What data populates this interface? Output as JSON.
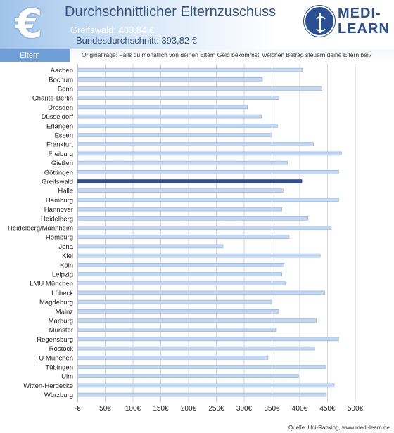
{
  "header": {
    "title": "Durchschnittlicher Elternzuschuss",
    "highlight_line": "Greifswald: 403,84 €",
    "average_line": "Bundesdurchschnitt: 393,82 €",
    "icon": "euro-icon"
  },
  "logo": {
    "line1": "MEDI-",
    "line2": "LEARN",
    "icon": "caduceus-icon",
    "color": "#2a4f93"
  },
  "section": {
    "label": "Eltern"
  },
  "question": "Originalfrage: Falls du monatlich von deinen Eltern Geld bekommst, welchen Betrag steuern deine Eltern bei?",
  "footer": {
    "source": "Quelle: Uni-Ranking, www.medi-learn.de"
  },
  "chart_data": {
    "type": "bar",
    "orientation": "horizontal",
    "categories": [
      "Aachen",
      "Bochum",
      "Bonn",
      "Charité-Berlin",
      "Dresden",
      "Düsseldorf",
      "Erlangen",
      "Essen",
      "Frankfurt",
      "Freiburg",
      "Gießen",
      "Göttingen",
      "Greifswald",
      "Halle",
      "Hamburg",
      "Hannover",
      "Heidelberg",
      "Heidelberg/Mannheim",
      "Homburg",
      "Jena",
      "Kiel",
      "Köln",
      "Leipzig",
      "LMU München",
      "Lübeck",
      "Magdeburg",
      "Mainz",
      "Marburg",
      "Münster",
      "Regensburg",
      "Rostock",
      "TU München",
      "Tübingen",
      "Ulm",
      "Witten-Herdecke",
      "Würzburg"
    ],
    "values": [
      405,
      333,
      440,
      362,
      306,
      331,
      360,
      350,
      425,
      475,
      378,
      470,
      403.84,
      370,
      470,
      368,
      415,
      457,
      381,
      262,
      437,
      372,
      368,
      375,
      445,
      350,
      362,
      430,
      357,
      470,
      427,
      343,
      447,
      398,
      462,
      448
    ],
    "highlight": "Greifswald",
    "xlim": [
      0,
      500
    ],
    "x_ticks": [
      {
        "value": 0,
        "label": "-€"
      },
      {
        "value": 50,
        "label": "50€"
      },
      {
        "value": 100,
        "label": "100€"
      },
      {
        "value": 150,
        "label": "150€"
      },
      {
        "value": 200,
        "label": "200€"
      },
      {
        "value": 250,
        "label": "250€"
      },
      {
        "value": 300,
        "label": "300€"
      },
      {
        "value": 350,
        "label": "350€"
      },
      {
        "value": 400,
        "label": "400€"
      },
      {
        "value": 450,
        "label": "450€"
      },
      {
        "value": 500,
        "label": "500€"
      }
    ],
    "grid": true,
    "colors": {
      "bar": "#c3d6f2",
      "bar_edge": "#8eaedc",
      "highlight": "#2f4d97"
    }
  }
}
